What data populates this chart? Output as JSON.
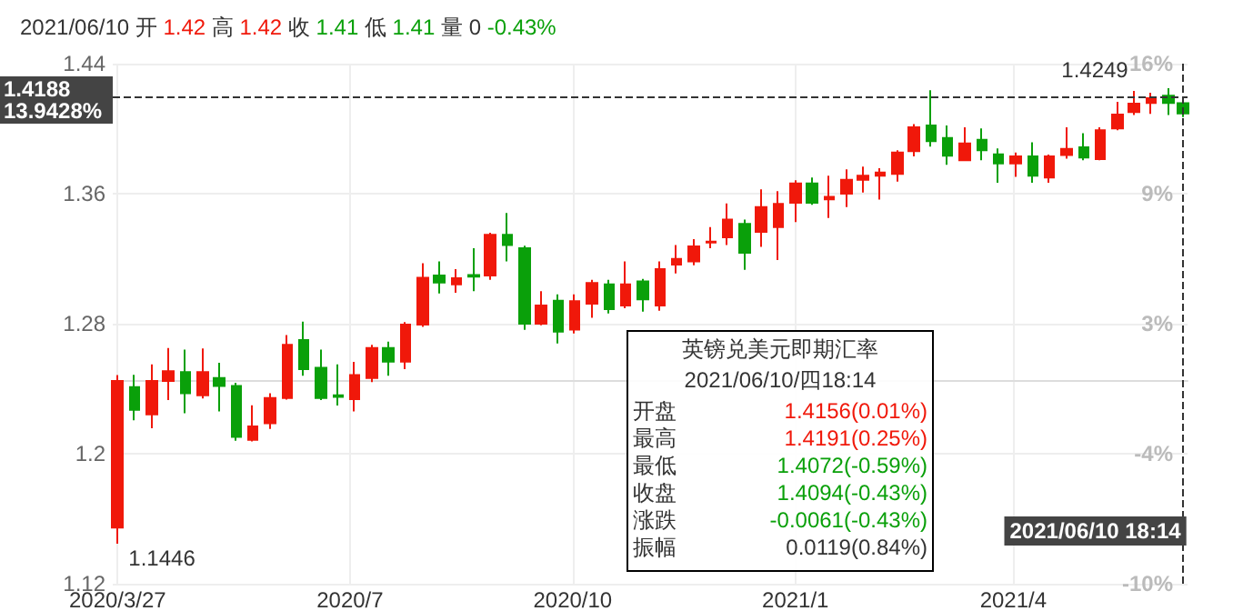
{
  "chart_data": {
    "type": "candlestick",
    "title": "2021/06/10 开 1.42 高 1.42 收 1.41 低 1.41 量 0 -0.43%",
    "x": [
      "2020-03-27",
      "2020-04-03",
      "2020-04-10",
      "2020-04-17",
      "2020-04-24",
      "2020-05-01",
      "2020-05-08",
      "2020-05-15",
      "2020-05-22",
      "2020-05-29",
      "2020-06-05",
      "2020-06-12",
      "2020-06-19",
      "2020-06-26",
      "2020-07-03",
      "2020-07-10",
      "2020-07-17",
      "2020-07-24",
      "2020-07-31",
      "2020-08-07",
      "2020-08-14",
      "2020-08-21",
      "2020-08-28",
      "2020-09-04",
      "2020-09-11",
      "2020-09-18",
      "2020-09-25",
      "2020-10-02",
      "2020-10-09",
      "2020-10-16",
      "2020-10-23",
      "2020-10-30",
      "2020-11-06",
      "2020-11-13",
      "2020-11-20",
      "2020-11-27",
      "2020-12-04",
      "2020-12-11",
      "2020-12-18",
      "2020-12-25",
      "2021-01-01",
      "2021-01-08",
      "2021-01-15",
      "2021-01-22",
      "2021-01-29",
      "2021-02-05",
      "2021-02-12",
      "2021-02-19",
      "2021-02-26",
      "2021-03-05",
      "2021-03-12",
      "2021-03-19",
      "2021-03-26",
      "2021-04-02",
      "2021-04-09",
      "2021-04-16",
      "2021-04-23",
      "2021-04-30",
      "2021-05-07",
      "2021-05-14",
      "2021-05-21",
      "2021-05-28",
      "2021-06-04",
      "2021-06-10"
    ],
    "ohlc": [
      [
        1.1546,
        1.2484,
        1.1446,
        1.2447
      ],
      [
        1.241,
        1.2485,
        1.2205,
        1.227
      ],
      [
        1.2242,
        1.255,
        1.2157,
        1.2447
      ],
      [
        1.2447,
        1.265,
        1.233,
        1.2507
      ],
      [
        1.2502,
        1.264,
        1.2249,
        1.2372
      ],
      [
        1.236,
        1.2648,
        1.234,
        1.2502
      ],
      [
        1.2466,
        1.256,
        1.226,
        1.2417
      ],
      [
        1.2417,
        1.2437,
        1.208,
        1.2104
      ],
      [
        1.2086,
        1.2298,
        1.2075,
        1.2168
      ],
      [
        1.2187,
        1.2372,
        1.2153,
        1.2343
      ],
      [
        1.2343,
        1.273,
        1.2333,
        1.267
      ],
      [
        1.27,
        1.2813,
        1.248,
        1.252
      ],
      [
        1.2528,
        1.264,
        1.233,
        1.2343
      ],
      [
        1.236,
        1.255,
        1.2296,
        1.235
      ],
      [
        1.2335,
        1.2565,
        1.226,
        1.2484
      ],
      [
        1.2466,
        1.267,
        1.244,
        1.265
      ],
      [
        1.265,
        1.269,
        1.248,
        1.2566
      ],
      [
        1.2566,
        1.281,
        1.252,
        1.2794
      ],
      [
        1.2794,
        1.3172,
        1.278,
        1.3083
      ],
      [
        1.3097,
        1.3183,
        1.2986,
        1.3053
      ],
      [
        1.3042,
        1.3135,
        1.299,
        1.308
      ],
      [
        1.31,
        1.3265,
        1.3,
        1.309
      ],
      [
        1.3097,
        1.336,
        1.307,
        1.3347
      ],
      [
        1.3347,
        1.3481,
        1.3183,
        1.3284
      ],
      [
        1.3265,
        1.328,
        1.2762,
        1.28
      ],
      [
        1.28,
        1.3,
        1.279,
        1.2912
      ],
      [
        1.2941,
        1.298,
        1.2678,
        1.2751
      ],
      [
        1.2763,
        1.298,
        1.274,
        1.2938
      ],
      [
        1.2923,
        1.307,
        1.2837,
        1.305
      ],
      [
        1.3042,
        1.307,
        1.2863,
        1.289
      ],
      [
        1.2912,
        1.3183,
        1.2895,
        1.3042
      ],
      [
        1.306,
        1.3075,
        1.2874,
        1.2949
      ],
      [
        1.2912,
        1.3183,
        1.288,
        1.3135
      ],
      [
        1.3164,
        1.3284,
        1.3109,
        1.3198
      ],
      [
        1.3183,
        1.332,
        1.316,
        1.3276
      ],
      [
        1.33,
        1.3395,
        1.3265,
        1.3305
      ],
      [
        1.3332,
        1.354,
        1.3284,
        1.344
      ],
      [
        1.3414,
        1.344,
        1.3131,
        1.3236
      ],
      [
        1.3365,
        1.3626,
        1.3273,
        1.3518
      ],
      [
        1.3395,
        1.3615,
        1.3191,
        1.3537
      ],
      [
        1.3544,
        1.3682,
        1.3425,
        1.3663
      ],
      [
        1.3663,
        1.37,
        1.3532,
        1.3544
      ],
      [
        1.3565,
        1.3711,
        1.3451,
        1.358
      ],
      [
        1.36,
        1.3749,
        1.3518,
        1.3686
      ],
      [
        1.3686,
        1.3767,
        1.3607,
        1.3711
      ],
      [
        1.3711,
        1.3756,
        1.3563,
        1.373
      ],
      [
        1.3722,
        1.3867,
        1.3674,
        1.3853
      ],
      [
        1.3861,
        1.4028,
        1.383,
        1.4009
      ],
      [
        1.402,
        1.4237,
        1.389,
        1.3923
      ],
      [
        1.3942,
        1.402,
        1.3778,
        1.3834
      ],
      [
        1.3805,
        1.4009,
        1.38,
        1.3909
      ],
      [
        1.3931,
        1.4001,
        1.3805,
        1.3867
      ],
      [
        1.3842,
        1.3879,
        1.3667,
        1.3786
      ],
      [
        1.3786,
        1.3853,
        1.3704,
        1.383
      ],
      [
        1.383,
        1.3916,
        1.3667,
        1.3711
      ],
      [
        1.37,
        1.384,
        1.3667,
        1.383
      ],
      [
        1.3838,
        1.4009,
        1.3816,
        1.3875
      ],
      [
        1.3886,
        1.3972,
        1.3805,
        1.3823
      ],
      [
        1.3812,
        1.4009,
        1.3805,
        1.399
      ],
      [
        1.4001,
        1.4165,
        1.399,
        1.4087
      ],
      [
        1.4102,
        1.4232,
        1.4084,
        1.4154
      ],
      [
        1.4158,
        1.4221,
        1.4091,
        1.4188
      ],
      [
        1.4203,
        1.4249,
        1.4084,
        1.4158
      ],
      [
        1.4156,
        1.4191,
        1.4072,
        1.4094
      ]
    ],
    "colors": [
      "#f0180a",
      "#0aa00a",
      "#f0180a",
      "#f0180a",
      "#0aa00a",
      "#f0180a",
      "#0aa00a",
      "#0aa00a",
      "#f0180a",
      "#f0180a",
      "#f0180a",
      "#0aa00a",
      "#0aa00a",
      "#0aa00a",
      "#f0180a",
      "#f0180a",
      "#0aa00a",
      "#f0180a",
      "#f0180a",
      "#0aa00a",
      "#f0180a",
      "#0aa00a",
      "#f0180a",
      "#0aa00a",
      "#0aa00a",
      "#f0180a",
      "#0aa00a",
      "#f0180a",
      "#f0180a",
      "#0aa00a",
      "#f0180a",
      "#0aa00a",
      "#f0180a",
      "#f0180a",
      "#f0180a",
      "#f0180a",
      "#f0180a",
      "#0aa00a",
      "#f0180a",
      "#f0180a",
      "#f0180a",
      "#0aa00a",
      "#f0180a",
      "#f0180a",
      "#f0180a",
      "#f0180a",
      "#f0180a",
      "#f0180a",
      "#0aa00a",
      "#0aa00a",
      "#f0180a",
      "#0aa00a",
      "#0aa00a",
      "#f0180a",
      "#0aa00a",
      "#f0180a",
      "#f0180a",
      "#0aa00a",
      "#f0180a",
      "#f0180a",
      "#f0180a",
      "#f0180a",
      "#0aa00a",
      "#0aa00a"
    ],
    "xlim": [
      "2020-03-25",
      "2021-06-12"
    ],
    "xticks": [
      {
        "value": "2020-03-27",
        "label": "2020/3/27"
      },
      {
        "value": "2020-07-01",
        "label": "2020/7"
      },
      {
        "value": "2020-10-01",
        "label": "2020/10"
      },
      {
        "value": "2021-01-01",
        "label": "2021/1"
      },
      {
        "value": "2021-04-01",
        "label": "2021/4"
      }
    ],
    "ylim": [
      1.12,
      1.44
    ],
    "yticks": [
      1.12,
      1.2,
      1.28,
      1.36,
      1.44
    ],
    "y2lim": [
      -10.05,
      15.65
    ],
    "y2ticks": [
      {
        "value": -10.05,
        "label": "-10%"
      },
      {
        "value": -3.63,
        "label": "-4%"
      },
      {
        "value": 2.8,
        "label": "3%"
      },
      {
        "value": 9.22,
        "label": "9%"
      },
      {
        "value": 15.65,
        "label": "16%"
      }
    ],
    "grid": true,
    "ref_lines": [
      {
        "axis": "y",
        "value": 1.4188,
        "label": "1.4188\n13.9428%",
        "color": "#333333",
        "line_style": "dashed"
      },
      {
        "axis": "x",
        "value": "2021-06-10",
        "label": "2021/06/10 18:14",
        "color": "#333333",
        "line_style": "dashed"
      }
    ],
    "annotations": [
      {
        "text": "1.4249",
        "x": "2021-06-04",
        "y": 1.4249
      },
      {
        "text": "1.1446",
        "x": "2020-03-27",
        "y": 1.1446
      },
      "英镑兑美元即期汇率",
      "2021/06/10/四18:14",
      "开盘 1.4156(0.01%)",
      "最高 1.4191(0.25%)",
      "最低 1.4072(-0.59%)",
      "收盘 1.4094(-0.43%)",
      "涨跌 -0.0061(-0.43%)",
      "振幅 0.0119(0.84%)"
    ]
  }
}
